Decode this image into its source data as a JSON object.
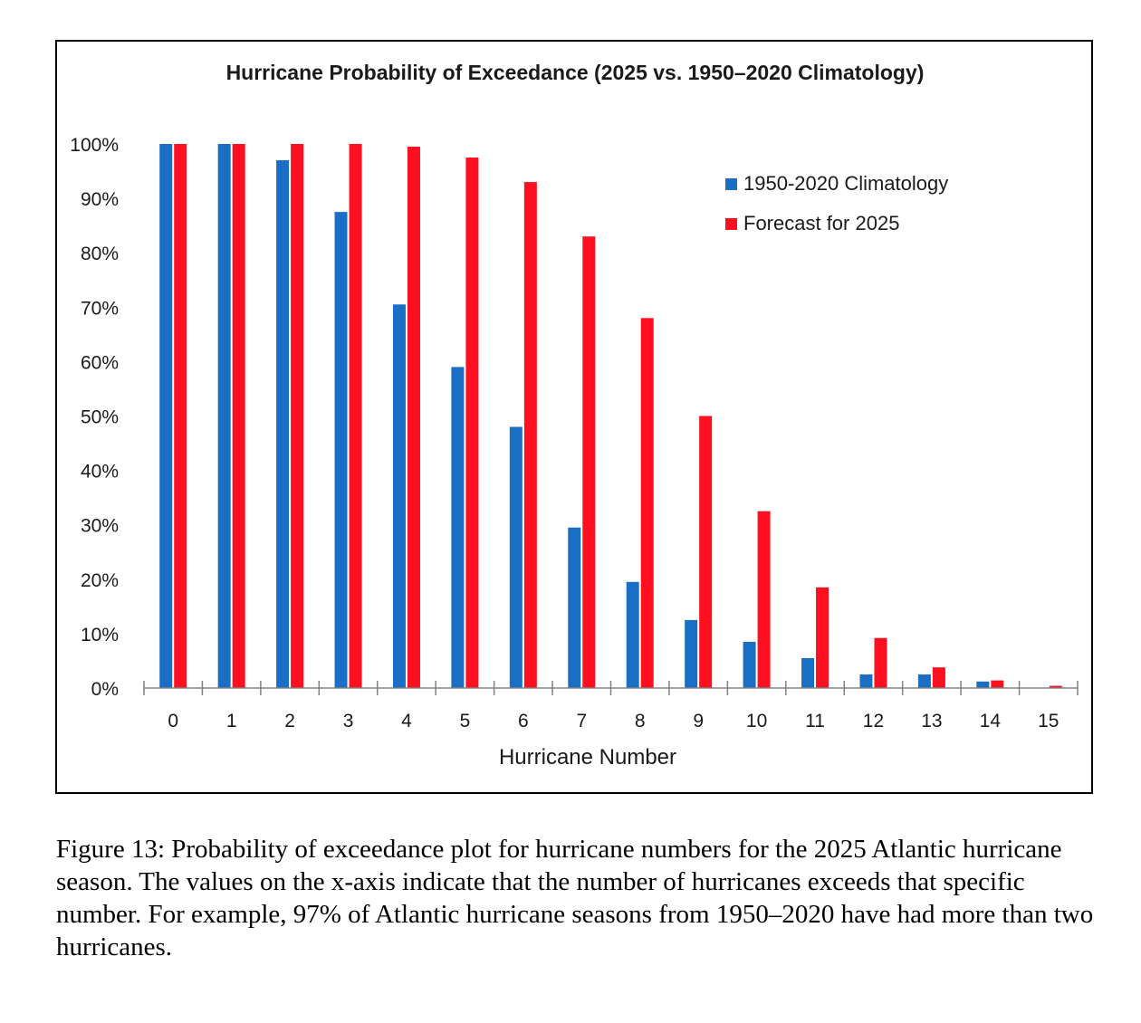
{
  "chart_data": {
    "type": "bar",
    "title": "Hurricane Probability of Exceedance (2025 vs. 1950–2020 Climatology)",
    "xlabel": "Hurricane Number",
    "ylabel": "",
    "ylim": [
      0,
      100
    ],
    "ytick_labels": [
      "0%",
      "10%",
      "20%",
      "30%",
      "40%",
      "50%",
      "60%",
      "70%",
      "80%",
      "90%",
      "100%"
    ],
    "categories": [
      "0",
      "1",
      "2",
      "3",
      "4",
      "5",
      "6",
      "7",
      "8",
      "9",
      "10",
      "11",
      "12",
      "13",
      "14",
      "15"
    ],
    "series": [
      {
        "name": "1950-2020 Climatology",
        "color": "#1a6fc4",
        "values": [
          100,
          100,
          97,
          87.5,
          70.5,
          59,
          48,
          29.5,
          19.5,
          12.5,
          8.5,
          5.5,
          2.5,
          2.5,
          1.2,
          0
        ]
      },
      {
        "name": "Forecast for 2025",
        "color": "#ff1020",
        "values": [
          100,
          100,
          100,
          100,
          99.5,
          97.5,
          93,
          83,
          68,
          50,
          32.5,
          18.5,
          9.2,
          3.8,
          1.4,
          0.4
        ]
      }
    ],
    "legend_position": "top-right",
    "grid": false
  },
  "caption": "Figure 13: Probability of exceedance plot for hurricane numbers for the 2025 Atlantic hurricane season. The values on the x-axis indicate that the number of hurricanes exceeds that specific number. For example, 97% of Atlantic hurricane seasons from 1950–2020 have had more than two hurricanes."
}
